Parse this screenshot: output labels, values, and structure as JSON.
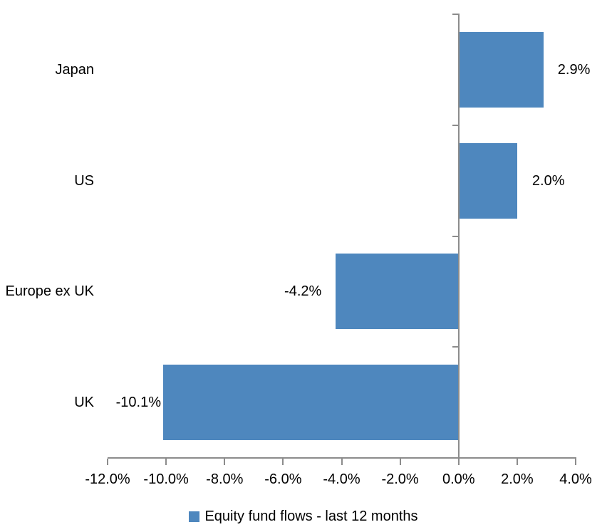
{
  "chart_data": {
    "type": "bar",
    "orientation": "horizontal",
    "categories": [
      "Japan",
      "US",
      "Europe ex UK",
      "UK"
    ],
    "values": [
      2.9,
      2.0,
      -4.2,
      -10.1
    ],
    "value_labels": [
      "2.9%",
      "2.0%",
      "-4.2%",
      "-10.1%"
    ],
    "series_name": "Equity fund flows - last 12 months",
    "xlim": [
      -12,
      4
    ],
    "x_ticks": [
      -12,
      -10,
      -8,
      -6,
      -4,
      -2,
      0,
      2,
      4
    ],
    "x_tick_labels": [
      "-12.0%",
      "-10.0%",
      "-8.0%",
      "-6.0%",
      "-4.0%",
      "-2.0%",
      "0.0%",
      "2.0%",
      "4.0%"
    ],
    "grid": false,
    "legend_position": "bottom",
    "colors": {
      "bar": "#4E87BE",
      "axis": "#8C8C8C",
      "text": "#000000",
      "background": "#FFFFFF"
    }
  },
  "legend": {
    "label": "Equity fund flows - last 12 months"
  }
}
